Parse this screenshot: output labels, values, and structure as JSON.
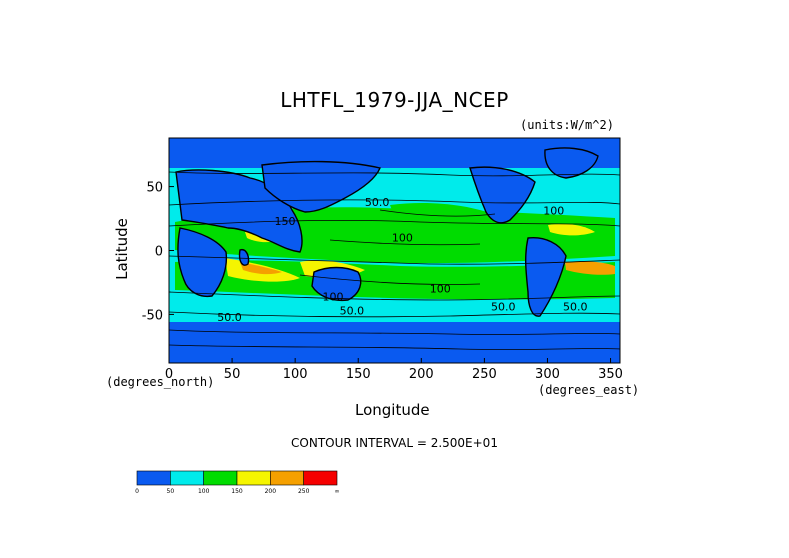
{
  "chart_data": {
    "type": "heatmap",
    "title": "LHTFL_1979-JJA_NCEP",
    "units": "(units:W/m^2)",
    "xlabel": "Longitude",
    "ylabel": "Latitude",
    "x_unit_label": "(degrees_east)",
    "y_unit_label": "(degrees_north)",
    "xlim": [
      0,
      357.5
    ],
    "ylim": [
      -88,
      88
    ],
    "x_ticks": [
      0,
      50,
      100,
      150,
      200,
      250,
      300,
      350
    ],
    "y_ticks": [
      -50,
      0,
      50
    ],
    "contour_interval": "CONTOUR INTERVAL = 2.500E+01",
    "colorbar": {
      "levels": [
        "0",
        "50",
        "100",
        "150",
        "200",
        "250",
        "∞"
      ],
      "colors": [
        "#0a5af0",
        "#00ebeb",
        "#00dc00",
        "#f5f500",
        "#f5a000",
        "#f50000"
      ]
    },
    "contour_labels": [
      {
        "text": "50.0",
        "lon": 165,
        "lat": 35
      },
      {
        "text": "100",
        "lon": 305,
        "lat": 28
      },
      {
        "text": "100",
        "lon": 185,
        "lat": 7
      },
      {
        "text": "100",
        "lon": 215,
        "lat": -33
      },
      {
        "text": "100",
        "lon": 130,
        "lat": -39
      },
      {
        "text": "50.0",
        "lon": 145,
        "lat": -50
      },
      {
        "text": "50.0",
        "lon": 48,
        "lat": -55
      },
      {
        "text": "50.0",
        "lon": 265,
        "lat": -47
      },
      {
        "text": "50.0",
        "lon": 322,
        "lat": -47
      },
      {
        "text": "150",
        "lon": 92,
        "lat": 20
      }
    ]
  }
}
